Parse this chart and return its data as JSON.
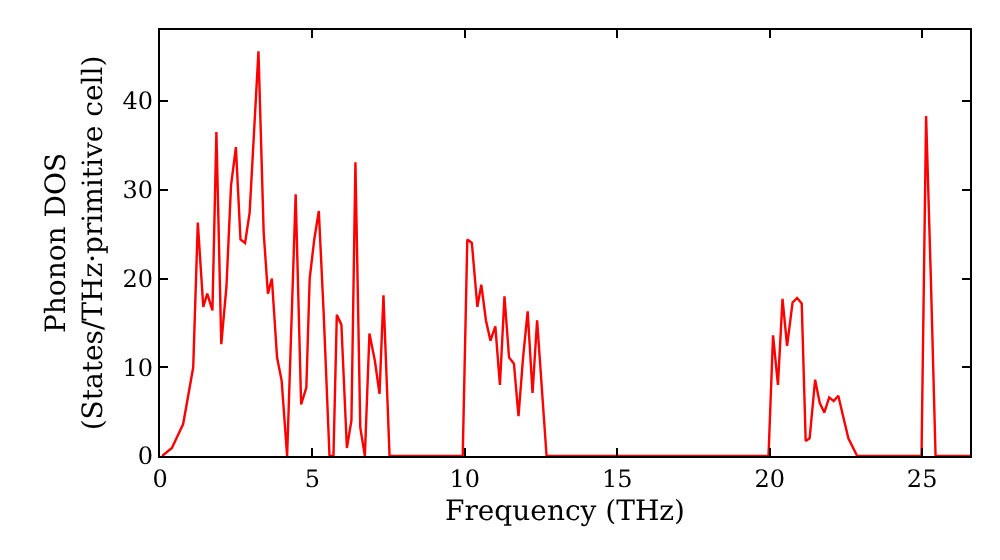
{
  "chart_data": {
    "type": "line",
    "xlabel": "Frequency (THz)",
    "ylabel": "Phonon DOS\n(States/THz·primitive cell)",
    "xlim": [
      0,
      26.57
    ],
    "ylim": [
      0,
      48
    ],
    "xticks": [
      0,
      5,
      10,
      15,
      20,
      25
    ],
    "yticks": [
      0,
      10,
      20,
      30,
      40
    ],
    "marker": "none",
    "line_style": "solid",
    "series": [
      {
        "color": "#ff0000",
        "x": [
          0.07,
          0.39,
          0.76,
          1.09,
          1.24,
          1.42,
          1.55,
          1.72,
          1.85,
          2.01,
          2.18,
          2.33,
          2.49,
          2.64,
          2.79,
          2.94,
          3.23,
          3.4,
          3.54,
          3.67,
          3.84,
          3.99,
          4.17,
          4.45,
          4.63,
          4.8,
          4.91,
          5.06,
          5.21,
          5.37,
          5.56,
          5.69,
          5.8,
          5.95,
          6.13,
          6.28,
          6.41,
          6.57,
          6.72,
          6.87,
          7.05,
          7.2,
          7.33,
          7.53,
          9.93,
          10.08,
          10.23,
          10.41,
          10.54,
          10.69,
          10.84,
          11.0,
          11.15,
          11.3,
          11.45,
          11.61,
          11.76,
          11.91,
          12.06,
          12.22,
          12.37,
          12.68,
          19.96,
          20.11,
          20.27,
          20.42,
          20.57,
          20.75,
          20.9,
          21.05,
          21.18,
          21.31,
          21.49,
          21.64,
          21.79,
          21.95,
          22.1,
          22.25,
          22.42,
          22.58,
          22.87,
          24.98,
          25.13,
          25.29,
          25.44,
          26.57
        ],
        "values": [
          0,
          0.9,
          3.6,
          10,
          26.3,
          16.8,
          18.3,
          16.4,
          36.5,
          12.6,
          19.1,
          30.5,
          34.8,
          24.4,
          24.0,
          27.4,
          45.6,
          25.2,
          18.3,
          20.0,
          11.1,
          8.5,
          0,
          29.5,
          5.8,
          7.7,
          20,
          24.4,
          27.6,
          16,
          0,
          0,
          15.9,
          14.8,
          0.9,
          4,
          33.1,
          3.2,
          0,
          13.8,
          10.7,
          7,
          18.1,
          0,
          0,
          24.4,
          24.0,
          16.8,
          19.3,
          15.3,
          13.0,
          14.6,
          8.0,
          18.0,
          11.1,
          10.4,
          4.5,
          11.1,
          16.3,
          7.1,
          15.3,
          0,
          0,
          13.6,
          8.0,
          17.7,
          12.4,
          17.3,
          17.8,
          17.2,
          1.7,
          2.0,
          8.6,
          6.0,
          4.9,
          6.6,
          6.2,
          6.8,
          4.3,
          2.0,
          0,
          0,
          38.3,
          19.5,
          0,
          0
        ]
      }
    ]
  }
}
